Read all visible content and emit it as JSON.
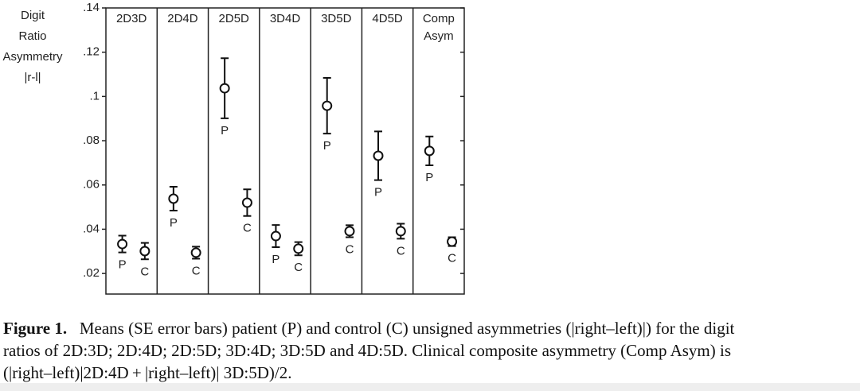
{
  "chart_data": {
    "type": "errorbar",
    "ylabel": [
      "Digit",
      "Ratio",
      "Asymmetry",
      "|r-l|"
    ],
    "categories": [
      "2D3D",
      "2D4D",
      "2D5D",
      "3D4D",
      "3D5D",
      "4D5D",
      "Comp Asym"
    ],
    "series": [
      {
        "name": "P",
        "values": [
          0.0333,
          0.0538,
          0.1037,
          0.0369,
          0.0958,
          0.0732,
          0.0754
        ],
        "errors": [
          0.0038,
          0.0054,
          0.0136,
          0.005,
          0.0126,
          0.011,
          0.0065
        ]
      },
      {
        "name": "C",
        "values": [
          0.0301,
          0.0294,
          0.052,
          0.0312,
          0.0391,
          0.0391,
          0.0344
        ],
        "errors": [
          0.0037,
          0.0027,
          0.006,
          0.003,
          0.0027,
          0.0034,
          0.002
        ]
      }
    ],
    "ylim": [
      0.0107,
      0.14
    ],
    "yticks": [
      {
        "value": 0.02,
        "label": ".02"
      },
      {
        "value": 0.04,
        "label": ".04"
      },
      {
        "value": 0.06,
        "label": ".06"
      },
      {
        "value": 0.08,
        "label": ".08"
      },
      {
        "value": 0.1,
        "label": ".1"
      },
      {
        "value": 0.12,
        "label": ".12"
      },
      {
        "value": 0.14,
        "label": ".14"
      }
    ],
    "caption": {
      "label": "Figure 1.",
      "lines": [
        "Means (SE error bars) patient (P) and control (C) unsigned asymmetries (|right–left)|) for the digit",
        "ratios of 2D:3D; 2D:4D; 2D:5D; 3D:4D; 3D:5D and 4D:5D. Clinical composite asymmetry (Comp Asym) is",
        "(|right–left)|2D:4D + |right–left)| 3D:5D)/2."
      ]
    }
  }
}
